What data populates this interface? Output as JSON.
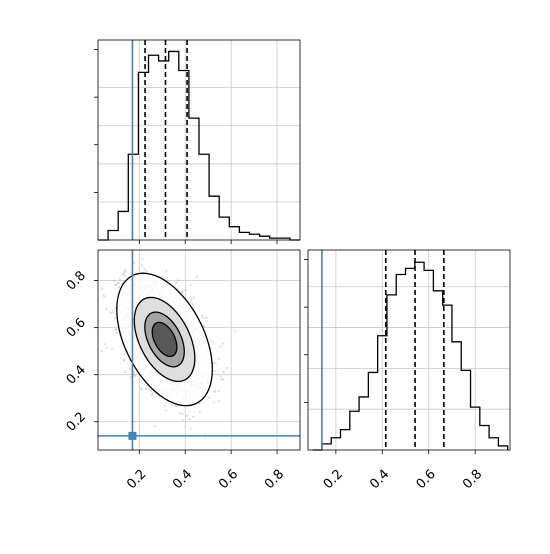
{
  "chart_data": {
    "type": "corner",
    "x_range": [
      0.02,
      0.9
    ],
    "y_range": [
      0.08,
      0.93
    ],
    "truth": {
      "x": 0.17,
      "y": 0.14
    },
    "colors": {
      "truth": "#4682b4",
      "hist": "#000000",
      "grid": "#c8c8c8",
      "scatter": "#9e9e9e"
    },
    "grid": true,
    "ticks_x": [
      0.2,
      0.4,
      0.6,
      0.8
    ],
    "ticks_x_labels": [
      "0.2",
      "0.4",
      "0.6",
      "0.8"
    ],
    "ticks_y": [
      0.2,
      0.4,
      0.6,
      0.8
    ],
    "ticks_y_labels": [
      "0.2",
      "0.4",
      "0.6",
      "0.8"
    ],
    "hist_x": {
      "edges": [
        0.02,
        0.064,
        0.108,
        0.152,
        0.196,
        0.24,
        0.284,
        0.328,
        0.372,
        0.416,
        0.46,
        0.504,
        0.548,
        0.592,
        0.636,
        0.68,
        0.724,
        0.768,
        0.812,
        0.856,
        0.9
      ],
      "counts": [
        0,
        0.5,
        1.5,
        4.5,
        8.8,
        9.7,
        9.4,
        9.9,
        8.9,
        6.4,
        4.5,
        2.3,
        1.2,
        0.7,
        0.4,
        0.3,
        0.2,
        0.1,
        0.1,
        0
      ],
      "ymax": 10.5,
      "quantiles": [
        0.225,
        0.314,
        0.408
      ]
    },
    "hist_y": {
      "edges": [
        0.1,
        0.14,
        0.18,
        0.22,
        0.26,
        0.3,
        0.34,
        0.38,
        0.42,
        0.46,
        0.5,
        0.54,
        0.58,
        0.62,
        0.66,
        0.7,
        0.74,
        0.78,
        0.82,
        0.86,
        0.9,
        0.94
      ],
      "counts": [
        0,
        0.3,
        0.6,
        1.0,
        1.9,
        2.6,
        3.8,
        5.6,
        7.6,
        8.6,
        8.9,
        9.2,
        8.8,
        7.8,
        7.1,
        5.3,
        3.9,
        2.1,
        1.2,
        0.6,
        0.2
      ],
      "ymax": 9.8,
      "quantiles": [
        0.415,
        0.541,
        0.665
      ]
    },
    "density": {
      "center": [
        0.31,
        0.55
      ],
      "sigma": [
        0.085,
        0.115
      ],
      "rho": -0.45,
      "levels": [
        0.4,
        0.7,
        0.95
      ]
    }
  }
}
